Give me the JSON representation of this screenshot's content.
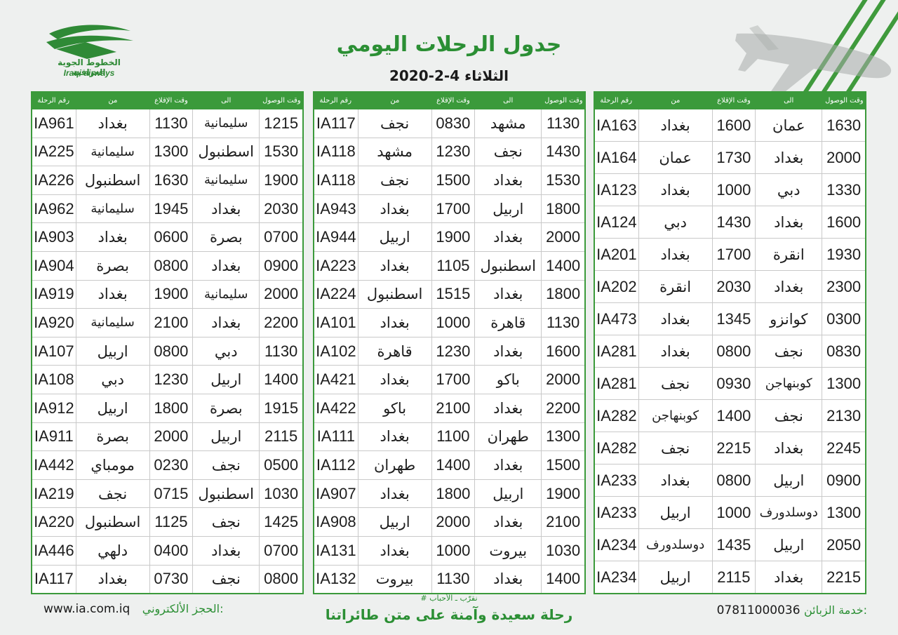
{
  "airline": {
    "name_ar": "الخطوط الجوية العراقية",
    "name_en": "Iraqi airways"
  },
  "title": "جدول الرحلات اليومي",
  "date": "الثلاثاء 4-2-2020",
  "colors": {
    "accent": "#3b9a3b",
    "title": "#2b8f34"
  },
  "columns": [
    "وقت الوصول",
    "الى",
    "وقت الإقلاع",
    "من",
    "رقم الرحلة"
  ],
  "tables": [
    {
      "rows": [
        [
          "1630",
          "عمان",
          "1600",
          "بغداد",
          "IA163"
        ],
        [
          "2000",
          "بغداد",
          "1730",
          "عمان",
          "IA164"
        ],
        [
          "1330",
          "دبي",
          "1000",
          "بغداد",
          "IA123"
        ],
        [
          "1600",
          "بغداد",
          "1430",
          "دبي",
          "IA124"
        ],
        [
          "1930",
          "انقرة",
          "1700",
          "بغداد",
          "IA201"
        ],
        [
          "2300",
          "بغداد",
          "2030",
          "انقرة",
          "IA202"
        ],
        [
          "0300",
          "كوانزو",
          "1345",
          "بغداد",
          "IA473"
        ],
        [
          "0830",
          "نجف",
          "0800",
          "بغداد",
          "IA281"
        ],
        [
          "1300",
          "كوبنهاجن",
          "0930",
          "نجف",
          "IA281"
        ],
        [
          "2130",
          "نجف",
          "1400",
          "كوبنهاجن",
          "IA282"
        ],
        [
          "2245",
          "بغداد",
          "2215",
          "نجف",
          "IA282"
        ],
        [
          "0900",
          "اربيل",
          "0800",
          "بغداد",
          "IA233"
        ],
        [
          "1300",
          "دوسلدورف",
          "1000",
          "اربيل",
          "IA233"
        ],
        [
          "2050",
          "اربيل",
          "1435",
          "دوسلدورف",
          "IA234"
        ],
        [
          "2215",
          "بغداد",
          "2115",
          "اربيل",
          "IA234"
        ]
      ]
    },
    {
      "rows": [
        [
          "1130",
          "مشهد",
          "0830",
          "نجف",
          "IA117"
        ],
        [
          "1430",
          "نجف",
          "1230",
          "مشهد",
          "IA118"
        ],
        [
          "1530",
          "بغداد",
          "1500",
          "نجف",
          "IA118"
        ],
        [
          "1800",
          "اربيل",
          "1700",
          "بغداد",
          "IA943"
        ],
        [
          "2000",
          "بغداد",
          "1900",
          "اربيل",
          "IA944"
        ],
        [
          "1400",
          "اسطنبول",
          "1105",
          "بغداد",
          "IA223"
        ],
        [
          "1800",
          "بغداد",
          "1515",
          "اسطنبول",
          "IA224"
        ],
        [
          "1130",
          "قاهرة",
          "1000",
          "بغداد",
          "IA101"
        ],
        [
          "1600",
          "بغداد",
          "1230",
          "قاهرة",
          "IA102"
        ],
        [
          "2000",
          "باكو",
          "1700",
          "بغداد",
          "IA421"
        ],
        [
          "2200",
          "بغداد",
          "2100",
          "باكو",
          "IA422"
        ],
        [
          "1300",
          "طهران",
          "1100",
          "بغداد",
          "IA111"
        ],
        [
          "1500",
          "بغداد",
          "1400",
          "طهران",
          "IA112"
        ],
        [
          "1900",
          "اربيل",
          "1800",
          "بغداد",
          "IA907"
        ],
        [
          "2100",
          "بغداد",
          "2000",
          "اربيل",
          "IA908"
        ],
        [
          "1030",
          "بيروت",
          "1000",
          "بغداد",
          "IA131"
        ],
        [
          "1400",
          "بغداد",
          "1130",
          "بيروت",
          "IA132"
        ]
      ]
    },
    {
      "rows": [
        [
          "1215",
          "سليمانية",
          "1130",
          "بغداد",
          "IA961"
        ],
        [
          "1530",
          "اسطنبول",
          "1300",
          "سليمانية",
          "IA225"
        ],
        [
          "1900",
          "سليمانية",
          "1630",
          "اسطنبول",
          "IA226"
        ],
        [
          "2030",
          "بغداد",
          "1945",
          "سليمانية",
          "IA962"
        ],
        [
          "0700",
          "بصرة",
          "0600",
          "بغداد",
          "IA903"
        ],
        [
          "0900",
          "بغداد",
          "0800",
          "بصرة",
          "IA904"
        ],
        [
          "2000",
          "سليمانية",
          "1900",
          "بغداد",
          "IA919"
        ],
        [
          "2200",
          "بغداد",
          "2100",
          "سليمانية",
          "IA920"
        ],
        [
          "1130",
          "دبي",
          "0800",
          "اربيل",
          "IA107"
        ],
        [
          "1400",
          "اربيل",
          "1230",
          "دبي",
          "IA108"
        ],
        [
          "1915",
          "بصرة",
          "1800",
          "اربيل",
          "IA912"
        ],
        [
          "2115",
          "اربيل",
          "2000",
          "بصرة",
          "IA911"
        ],
        [
          "0500",
          "نجف",
          "0230",
          "مومباي",
          "IA442"
        ],
        [
          "1030",
          "اسطنبول",
          "0715",
          "نجف",
          "IA219"
        ],
        [
          "1425",
          "نجف",
          "1125",
          "اسطنبول",
          "IA220"
        ],
        [
          "0700",
          "بغداد",
          "0400",
          "دلهي",
          "IA446"
        ],
        [
          "0800",
          "نجف",
          "0730",
          "بغداد",
          "IA117"
        ]
      ]
    }
  ],
  "footer": {
    "service_label": "خدمة الزبائن:",
    "service_phone": "07811000036",
    "slogan_small": "# نقرّب ـ الأحباب",
    "slogan": "رحلة سعيدة وآمنة على متن طائراتنا",
    "booking_label": "الحجز الألكتروني:",
    "website": "www.ia.com.iq"
  }
}
